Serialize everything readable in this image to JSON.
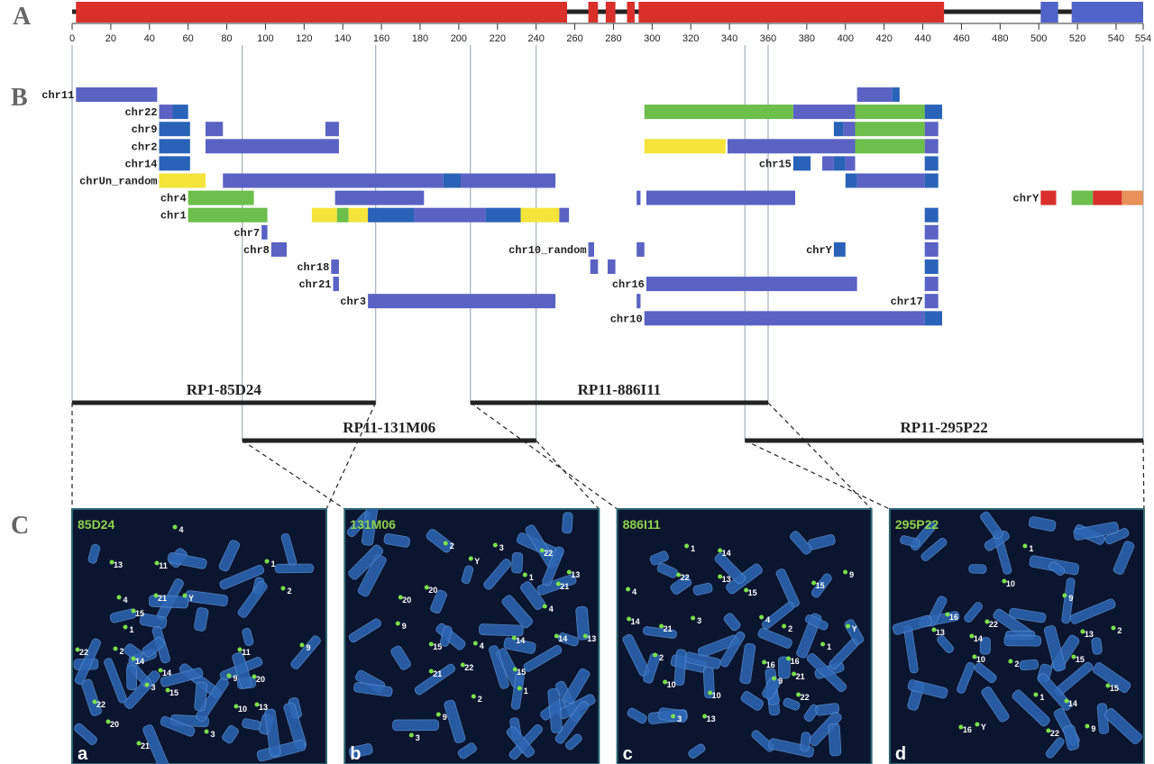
{
  "panel_letters": [
    "A",
    "B",
    "C"
  ],
  "axis": {
    "range": [
      0,
      554
    ],
    "ticks": [
      0,
      20,
      40,
      60,
      80,
      100,
      120,
      140,
      160,
      180,
      200,
      220,
      240,
      260,
      280,
      300,
      320,
      340,
      360,
      380,
      400,
      420,
      440,
      460,
      480,
      500,
      520,
      540,
      554
    ]
  },
  "panel_a": {
    "segments": [
      [
        2,
        256,
        "#d9302c"
      ],
      [
        267,
        272,
        "#d9302c"
      ],
      [
        276,
        281,
        "#d9302c"
      ],
      [
        287,
        291,
        "#d9302c"
      ],
      [
        293,
        451,
        "#d9302c"
      ],
      [
        501,
        510,
        "#5063c8"
      ],
      [
        517,
        554,
        "#5063c8"
      ]
    ]
  },
  "panel_b": {
    "rows": [
      [
        {
          "label": "chr11",
          "segments": [
            [
              2,
              44,
              "#5a62c4"
            ]
          ]
        },
        {
          "segments": [
            [
              406,
              424,
              "#5a62c4"
            ],
            [
              424,
              428,
              "#2a62b8"
            ]
          ]
        }
      ],
      [
        {
          "label": "chr22",
          "segments": [
            [
              45,
              52,
              "#5a62c4"
            ],
            [
              52,
              60,
              "#2a62b8"
            ]
          ]
        },
        {
          "segments": [
            [
              296,
              373,
              "#6cbf4a"
            ],
            [
              373,
              405,
              "#5a62c4"
            ],
            [
              405,
              441,
              "#6cbf4a"
            ],
            [
              441,
              450,
              "#2a62b8"
            ]
          ]
        }
      ],
      [
        {
          "label": "chr9",
          "segments": [
            [
              45,
              61,
              "#2a62b8"
            ],
            [
              69,
              78,
              "#5a62c4"
            ],
            [
              131,
              138,
              "#5a62c4"
            ]
          ]
        },
        {
          "segments": [
            [
              394,
              399,
              "#2a62b8"
            ],
            [
              399,
              405,
              "#5a62c4"
            ],
            [
              405,
              441,
              "#6cbf4a"
            ],
            [
              441,
              448,
              "#5a62c4"
            ]
          ]
        }
      ],
      [
        {
          "label": "chr2",
          "segments": [
            [
              45,
              61,
              "#2a62b8"
            ],
            [
              69,
              138,
              "#5a62c4"
            ]
          ]
        },
        {
          "segments": [
            [
              296,
              338,
              "#f5e43a"
            ],
            [
              339,
              405,
              "#5a62c4"
            ],
            [
              405,
              441,
              "#6cbf4a"
            ],
            [
              441,
              448,
              "#5a62c4"
            ]
          ]
        }
      ],
      [
        {
          "label": "chr14",
          "segments": [
            [
              45,
              61,
              "#2a62b8"
            ]
          ]
        },
        {
          "label": "chr15",
          "segments": [
            [
              373,
              382,
              "#2a62b8"
            ],
            [
              388,
              394,
              "#5a62c4"
            ],
            [
              394,
              400,
              "#2a62b8"
            ],
            [
              400,
              405,
              "#5a62c4"
            ],
            [
              441,
              448,
              "#2a62b8"
            ]
          ]
        }
      ],
      [
        {
          "label": "chrUn_random",
          "segments": [
            [
              45,
              69,
              "#f5e43a"
            ],
            [
              78,
              192,
              "#5a62c4"
            ],
            [
              192,
              201,
              "#2a62b8"
            ],
            [
              201,
              250,
              "#5a62c4"
            ]
          ]
        },
        {
          "segments": [
            [
              400,
              406,
              "#2a62b8"
            ],
            [
              406,
              441,
              "#5a62c4"
            ],
            [
              441,
              448,
              "#2a62b8"
            ]
          ]
        }
      ],
      [
        {
          "label": "chr4",
          "segments": [
            [
              60,
              94,
              "#6cbf4a"
            ],
            [
              136,
              182,
              "#5a62c4"
            ]
          ]
        },
        {
          "segments": [
            [
              292,
              294,
              "#5a62c4"
            ],
            [
              297,
              374,
              "#5a62c4"
            ]
          ]
        },
        {
          "label": "chrY",
          "segments": [
            [
              501,
              509,
              "#d9302c"
            ],
            [
              517,
              528,
              "#6cbf4a"
            ],
            [
              528,
              543,
              "#d9302c"
            ],
            [
              543,
              554,
              "#e8915a"
            ]
          ]
        }
      ],
      [
        {
          "label": "chr1",
          "segments": [
            [
              60,
              101,
              "#6cbf4a"
            ],
            [
              124,
              137,
              "#f5e43a"
            ],
            [
              137,
              143,
              "#6cbf4a"
            ],
            [
              143,
              153,
              "#f5e43a"
            ],
            [
              153,
              177,
              "#2a62b8"
            ],
            [
              177,
              214,
              "#5a62c4"
            ],
            [
              214,
              232,
              "#2a62b8"
            ],
            [
              232,
              252,
              "#f5e43a"
            ],
            [
              252,
              257,
              "#5a62c4"
            ]
          ]
        },
        {
          "segments": [
            [
              441,
              448,
              "#2a62b8"
            ]
          ]
        }
      ],
      [
        {
          "label": "chr7",
          "segments": [
            [
              98,
              101,
              "#5a62c4"
            ]
          ]
        },
        {
          "segments": [
            [
              441,
              448,
              "#5a62c4"
            ]
          ]
        }
      ],
      [
        {
          "label": "chr8",
          "segments": [
            [
              103,
              111,
              "#5a62c4"
            ]
          ]
        },
        {
          "label": "chr10_random",
          "segments": [
            [
              267,
              270,
              "#5a62c4"
            ],
            [
              292,
              296,
              "#5a62c4"
            ]
          ]
        },
        {
          "label": "chrY",
          "segments": [
            [
              394,
              400,
              "#2a62b8"
            ]
          ]
        },
        {
          "segments": [
            [
              441,
              448,
              "#5a62c4"
            ]
          ]
        }
      ],
      [
        {
          "label": "chr18",
          "segments": [
            [
              134,
              138,
              "#5a62c4"
            ]
          ]
        },
        {
          "segments": [
            [
              268,
              272,
              "#5a62c4"
            ],
            [
              277,
              281,
              "#5a62c4"
            ]
          ]
        },
        {
          "segments": [
            [
              441,
              448,
              "#2a62b8"
            ]
          ]
        }
      ],
      [
        {
          "label": "chr21",
          "segments": [
            [
              135,
              138,
              "#5a62c4"
            ]
          ]
        },
        {
          "label": "chr16",
          "segments": [
            [
              297,
              406,
              "#5a62c4"
            ]
          ]
        },
        {
          "segments": [
            [
              441,
              448,
              "#5a62c4"
            ]
          ]
        }
      ],
      [
        {
          "label": "chr3",
          "segments": [
            [
              153,
              250,
              "#5a62c4"
            ]
          ]
        },
        {
          "segments": [
            [
              292,
              294,
              "#5a62c4"
            ]
          ]
        },
        {
          "label": "chr17",
          "segments": [
            [
              441,
              448,
              "#5a62c4"
            ]
          ]
        }
      ],
      [
        {
          "label": "chr10",
          "segments": [
            [
              296,
              441,
              "#5a62c4"
            ],
            [
              441,
              450,
              "#2a62b8"
            ]
          ]
        }
      ]
    ]
  },
  "clones": [
    {
      "name": "RP1-85D24",
      "start": 0,
      "end": 157
    },
    {
      "name": "RP11-131M06",
      "start": 88,
      "end": 240
    },
    {
      "name": "RP11-886I11",
      "start": 206,
      "end": 360
    },
    {
      "name": "RP11-295P22",
      "start": 348,
      "end": 554
    }
  ],
  "panel_c": {
    "images": [
      {
        "title": "85D24",
        "letter": "a",
        "labels": [
          "4",
          "13",
          "11",
          "1",
          "2",
          "4",
          "21",
          "Y",
          "15",
          "1",
          "9",
          "22",
          "2",
          "14",
          "11",
          "14",
          "9",
          "20",
          "3",
          "15",
          "22",
          "10",
          "13",
          "20",
          "21",
          "3"
        ]
      },
      {
        "title": "131M06",
        "letter": "b",
        "labels": [
          "2",
          "3",
          "22",
          "Y",
          "13",
          "1",
          "21",
          "20",
          "20",
          "4",
          "9",
          "14",
          "15",
          "4",
          "14",
          "13",
          "21",
          "22",
          "15",
          "2",
          "1",
          "9",
          "3"
        ]
      },
      {
        "title": "886I11",
        "letter": "c",
        "labels": [
          "1",
          "14",
          "9",
          "22",
          "13",
          "4",
          "15",
          "15",
          "4",
          "3",
          "2",
          "14",
          "21",
          "Y",
          "2",
          "1",
          "16",
          "16",
          "10",
          "9",
          "21",
          "10",
          "22",
          "3",
          "13"
        ]
      },
      {
        "title": "295P22",
        "letter": "d",
        "labels": [
          "1",
          "10",
          "9",
          "16",
          "22",
          "13",
          "14",
          "2",
          "13",
          "10",
          "2",
          "15",
          "15",
          "1",
          "14",
          "16",
          "Y",
          "9",
          "22"
        ]
      }
    ]
  }
}
